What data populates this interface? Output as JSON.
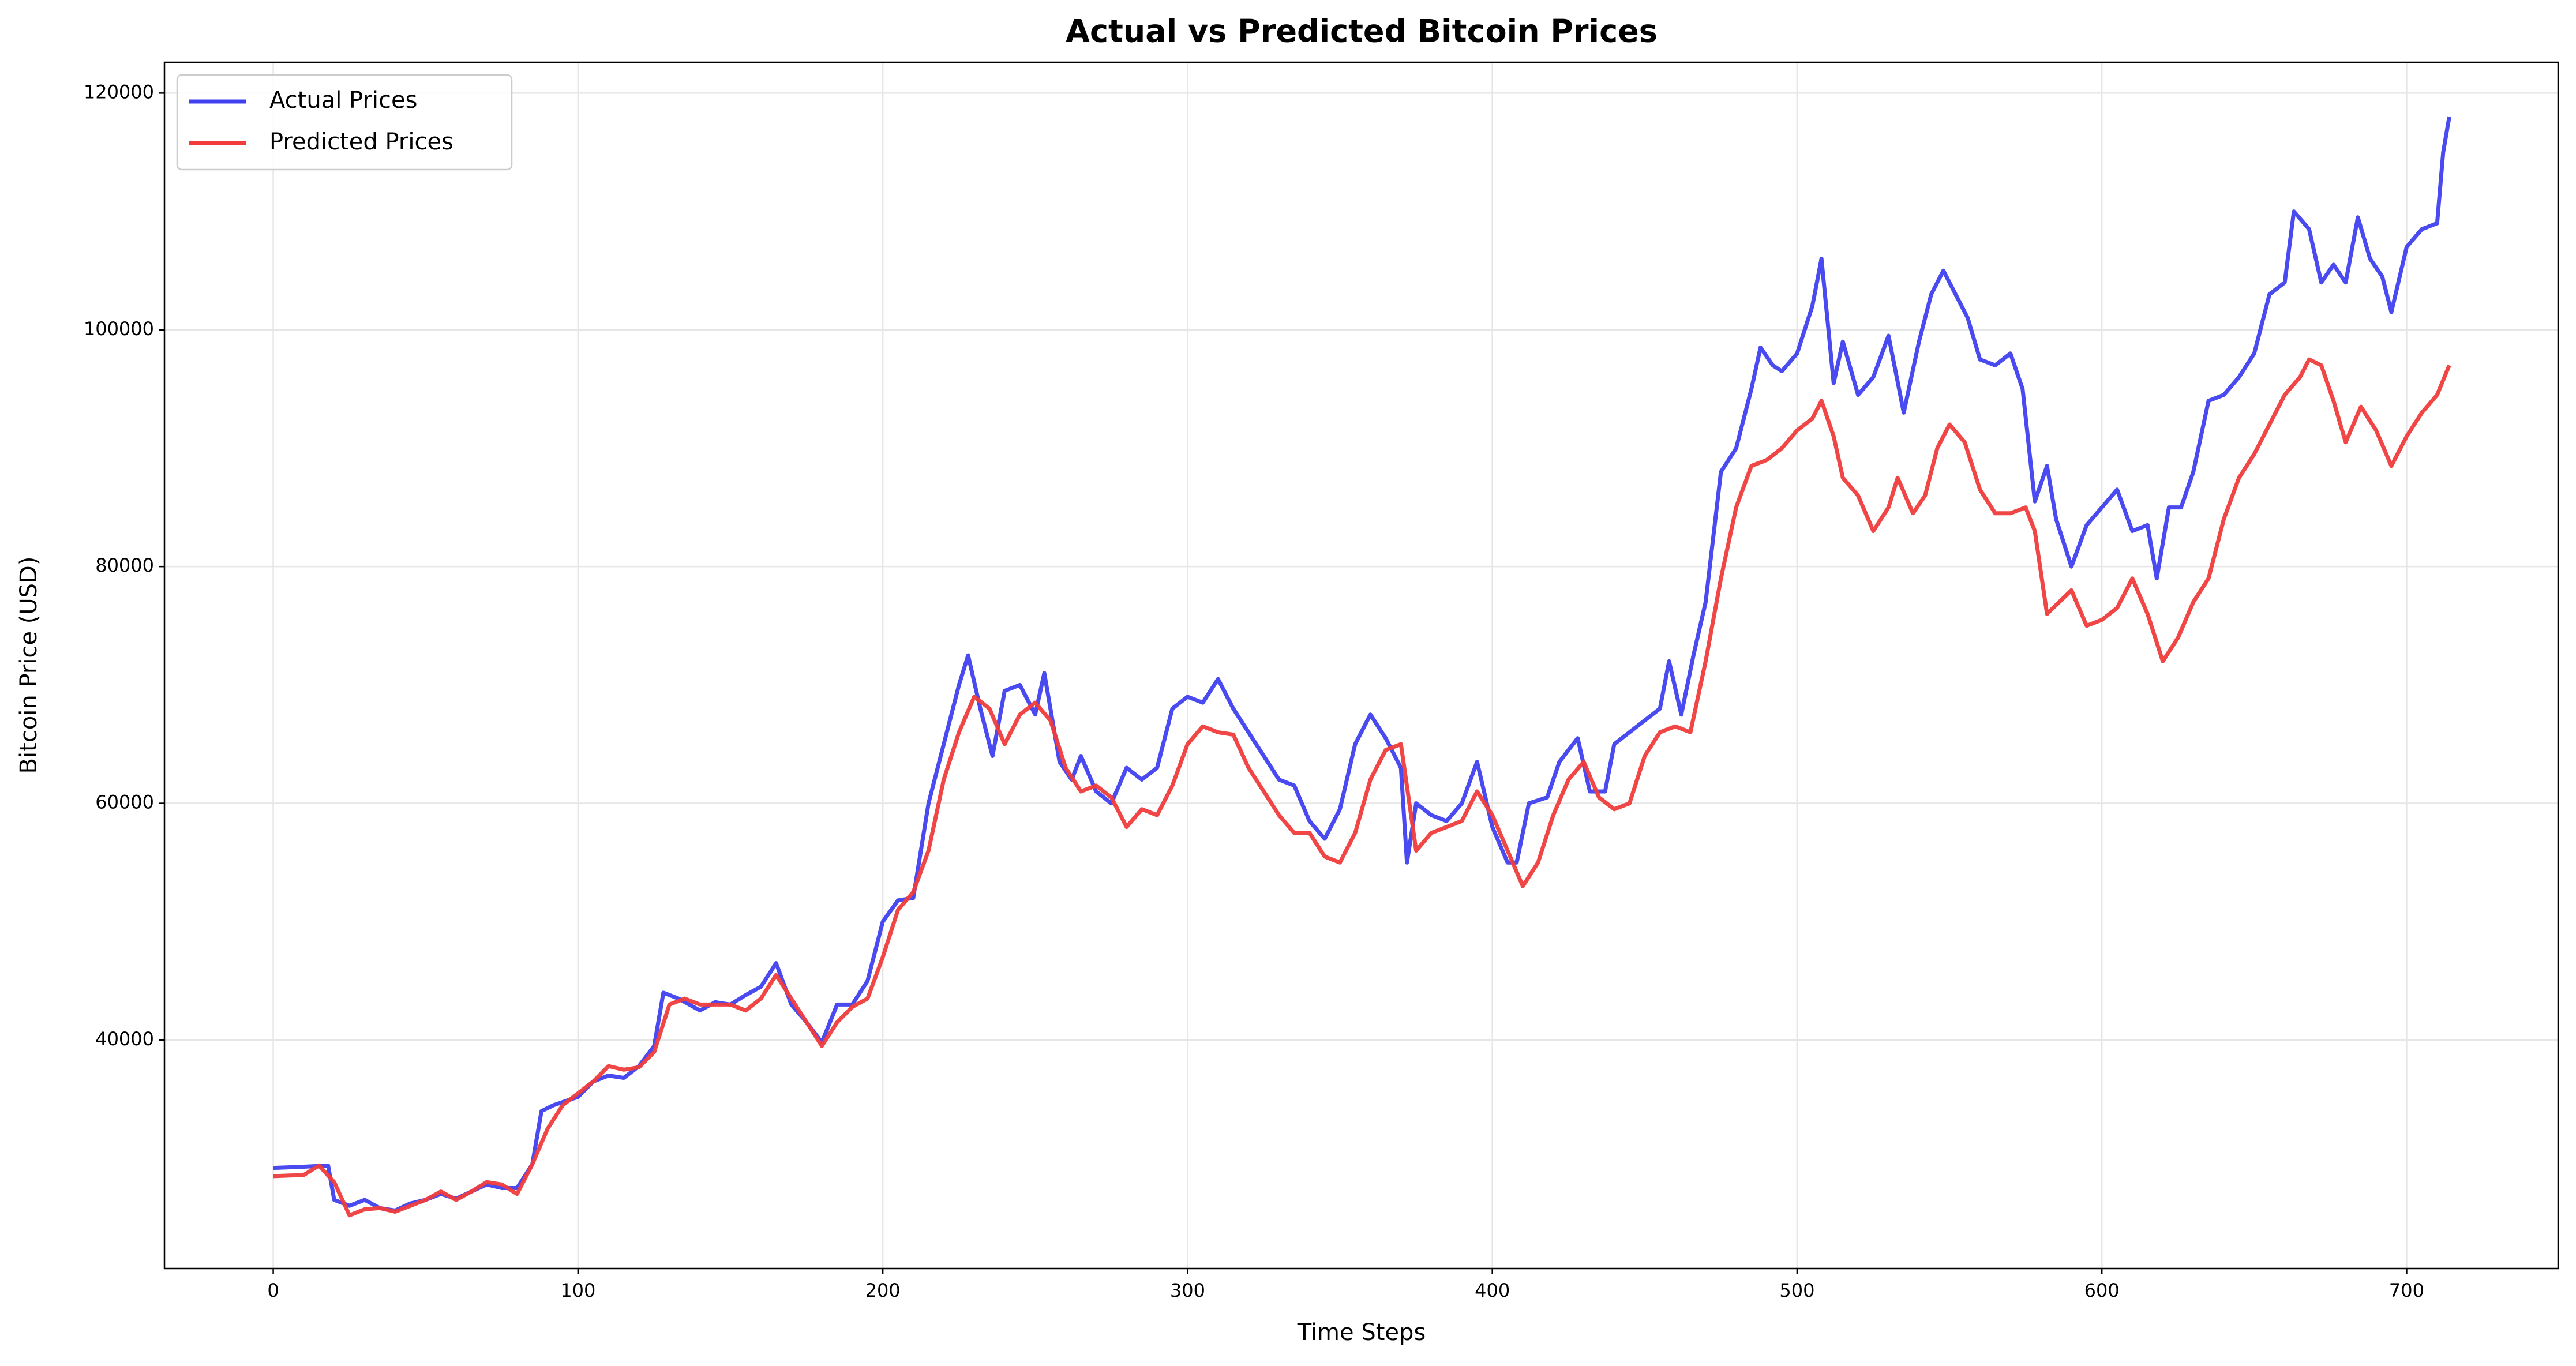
{
  "chart_data": {
    "type": "line",
    "title": "Actual vs Predicted Bitcoin Prices",
    "x_label": "Time Steps",
    "y_label": "Bitcoin Price (USD)",
    "xlim": [
      -35.7,
      749.7
    ],
    "ylim": [
      20700,
      122600
    ],
    "xticks": [
      0,
      100,
      200,
      300,
      400,
      500,
      600,
      700
    ],
    "yticks": [
      40000,
      60000,
      80000,
      100000,
      120000
    ],
    "grid": true,
    "legend": "upper left",
    "series": [
      {
        "name": "Actual Prices",
        "color": "#4040f0",
        "x": [
          0,
          10,
          18,
          20,
          25,
          30,
          35,
          40,
          45,
          50,
          55,
          60,
          65,
          70,
          75,
          80,
          85,
          88,
          92,
          100,
          105,
          110,
          115,
          120,
          125,
          128,
          133,
          140,
          145,
          150,
          155,
          160,
          165,
          170,
          175,
          180,
          185,
          190,
          195,
          200,
          205,
          210,
          215,
          220,
          225,
          228,
          232,
          236,
          240,
          245,
          250,
          253,
          258,
          262,
          265,
          270,
          275,
          280,
          285,
          290,
          295,
          300,
          305,
          310,
          315,
          320,
          325,
          330,
          335,
          340,
          345,
          350,
          355,
          360,
          365,
          370,
          372,
          375,
          380,
          385,
          390,
          395,
          400,
          405,
          408,
          412,
          418,
          422,
          428,
          432,
          437,
          440,
          445,
          450,
          455,
          458,
          462,
          466,
          470,
          475,
          480,
          485,
          488,
          492,
          495,
          500,
          505,
          508,
          512,
          515,
          520,
          525,
          530,
          535,
          540,
          544,
          548,
          552,
          556,
          560,
          565,
          570,
          574,
          578,
          582,
          585,
          590,
          595,
          600,
          605,
          610,
          615,
          618,
          622,
          626,
          630,
          635,
          640,
          645,
          650,
          655,
          660,
          663,
          668,
          672,
          676,
          680,
          684,
          688,
          692,
          695,
          700,
          705,
          710,
          712,
          714
        ],
        "values": [
          29200,
          29300,
          29400,
          26500,
          26000,
          26500,
          25800,
          25600,
          26200,
          26500,
          27000,
          26600,
          27200,
          27800,
          27500,
          27500,
          29500,
          34000,
          34500,
          35200,
          36500,
          37000,
          36800,
          37800,
          39500,
          44000,
          43500,
          42500,
          43200,
          43000,
          43800,
          44500,
          46500,
          43000,
          41500,
          39800,
          43000,
          43000,
          45000,
          50000,
          51800,
          52000,
          60000,
          65000,
          70000,
          72500,
          68000,
          64000,
          69500,
          70000,
          67500,
          71000,
          63500,
          62000,
          64000,
          61000,
          60000,
          63000,
          62000,
          63000,
          68000,
          69000,
          68500,
          70500,
          68000,
          66000,
          64000,
          62000,
          61500,
          58500,
          57000,
          59500,
          65000,
          67500,
          65500,
          63000,
          55000,
          60000,
          59000,
          58500,
          60000,
          63500,
          58000,
          55000,
          55000,
          60000,
          60500,
          63500,
          65500,
          61000,
          61000,
          65000,
          66000,
          67000,
          68000,
          72000,
          67500,
          72500,
          77000,
          88000,
          90000,
          95000,
          98500,
          97000,
          96500,
          98000,
          102000,
          106000,
          95500,
          99000,
          94500,
          96000,
          99500,
          93000,
          99000,
          103000,
          105000,
          103000,
          101000,
          97500,
          97000,
          98000,
          95000,
          85500,
          88500,
          84000,
          80000,
          83500,
          85000,
          86500,
          83000,
          83500,
          79000,
          85000,
          85000,
          88000,
          94000,
          94500,
          96000,
          98000,
          103000,
          104000,
          110000,
          108500,
          104000,
          105500,
          104000,
          109500,
          106000,
          104500,
          101500,
          107000,
          108500,
          109000,
          115000,
          118000
        ]
      },
      {
        "name": "Predicted Prices",
        "color": "#f03c3c",
        "x": [
          0,
          10,
          15,
          20,
          25,
          30,
          35,
          40,
          45,
          50,
          55,
          60,
          65,
          70,
          75,
          80,
          85,
          90,
          95,
          100,
          105,
          110,
          115,
          120,
          125,
          130,
          135,
          140,
          145,
          150,
          155,
          160,
          165,
          170,
          175,
          180,
          185,
          190,
          195,
          200,
          205,
          210,
          215,
          220,
          225,
          230,
          235,
          240,
          245,
          250,
          255,
          260,
          265,
          270,
          275,
          280,
          285,
          290,
          295,
          300,
          305,
          310,
          315,
          320,
          325,
          330,
          335,
          340,
          345,
          350,
          355,
          360,
          365,
          370,
          375,
          380,
          385,
          390,
          395,
          400,
          405,
          410,
          415,
          420,
          425,
          430,
          435,
          440,
          445,
          450,
          455,
          460,
          465,
          470,
          475,
          480,
          485,
          490,
          495,
          500,
          505,
          508,
          512,
          515,
          520,
          525,
          530,
          533,
          538,
          542,
          546,
          550,
          555,
          560,
          565,
          570,
          575,
          578,
          582,
          586,
          590,
          595,
          600,
          605,
          610,
          615,
          620,
          625,
          630,
          635,
          640,
          645,
          650,
          655,
          660,
          665,
          668,
          672,
          676,
          680,
          685,
          690,
          695,
          700,
          705,
          710,
          714
        ],
        "values": [
          28500,
          28600,
          29400,
          28000,
          25200,
          25700,
          25800,
          25500,
          26000,
          26500,
          27200,
          26500,
          27200,
          28000,
          27800,
          27000,
          29500,
          32500,
          34500,
          35500,
          36500,
          37800,
          37500,
          37700,
          39000,
          43000,
          43500,
          43000,
          43000,
          43000,
          42500,
          43500,
          45500,
          43500,
          41500,
          39500,
          41500,
          42800,
          43500,
          47000,
          51000,
          52500,
          56000,
          62000,
          66000,
          69000,
          68000,
          65000,
          67500,
          68500,
          67000,
          63000,
          61000,
          61500,
          60500,
          58000,
          59500,
          59000,
          61500,
          65000,
          66500,
          66000,
          65800,
          63000,
          61000,
          59000,
          57500,
          57500,
          55500,
          55000,
          57500,
          62000,
          64500,
          65000,
          56000,
          57500,
          58000,
          58500,
          61000,
          59000,
          56000,
          53000,
          55000,
          59000,
          62000,
          63500,
          60500,
          59500,
          60000,
          64000,
          66000,
          66500,
          66000,
          72000,
          79000,
          85000,
          88500,
          89000,
          90000,
          91500,
          92500,
          94000,
          91000,
          87500,
          86000,
          83000,
          85000,
          87500,
          84500,
          86000,
          90000,
          92000,
          90500,
          86500,
          84500,
          84500,
          85000,
          83000,
          76000,
          77000,
          78000,
          75000,
          75500,
          76500,
          79000,
          76000,
          72000,
          74000,
          77000,
          79000,
          84000,
          87500,
          89500,
          92000,
          94500,
          96000,
          97500,
          97000,
          94000,
          90500,
          93500,
          91500,
          88500,
          91000,
          93000,
          94500,
          97000
        ]
      }
    ]
  }
}
